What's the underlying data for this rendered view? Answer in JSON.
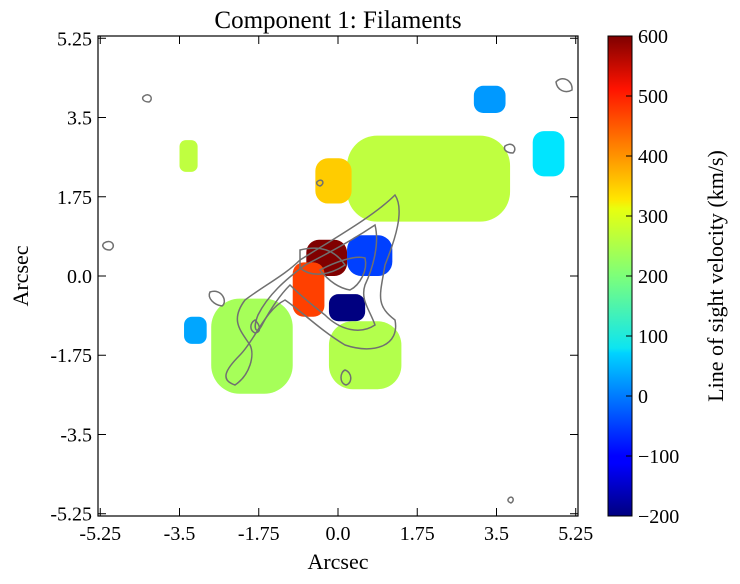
{
  "chart_data": {
    "type": "heatmap",
    "title": "Component 1: Filaments",
    "xlabel": "Arcsec",
    "ylabel": "Arcsec",
    "xlim": [
      -5.3,
      5.3
    ],
    "ylim": [
      -5.3,
      5.3
    ],
    "x_ticks": [
      -5.25,
      -3.5,
      -1.75,
      0.0,
      1.75,
      3.5,
      5.25
    ],
    "y_ticks": [
      -5.25,
      -3.5,
      -1.75,
      0.0,
      1.75,
      3.5,
      5.25
    ],
    "x_tick_labels": [
      "-5.25",
      "-3.5",
      "-1.75",
      "0.0",
      "1.75",
      "3.5",
      "5.25"
    ],
    "y_tick_labels": [
      "-5.25",
      "-3.5",
      "-1.75",
      "0.0",
      "1.75",
      "3.5",
      "5.25"
    ],
    "grid": false,
    "colorbar": {
      "label": "Line of sight velocity (km/s)",
      "colormap": "jet",
      "range": [
        -200,
        600
      ],
      "ticks": [
        -200,
        -100,
        0,
        100,
        200,
        300,
        400,
        500,
        600
      ],
      "tick_labels": [
        "−200",
        "−100",
        "0",
        "100",
        "200",
        "300",
        "400",
        "500",
        "600"
      ]
    },
    "contours": {
      "color": "#707070"
    },
    "regions": [
      {
        "x0": -0.2,
        "x1": 0.6,
        "y0": -1.0,
        "y1": -0.4,
        "velocity": -200
      },
      {
        "x0": 0.2,
        "x1": 1.2,
        "y0": 0.0,
        "y1": 0.9,
        "velocity": -50
      },
      {
        "x0": -0.7,
        "x1": 0.2,
        "y0": 0.0,
        "y1": 0.8,
        "velocity": 600
      },
      {
        "x0": -1.0,
        "x1": -0.3,
        "y0": -0.9,
        "y1": 0.3,
        "velocity": 450
      },
      {
        "x0": -2.8,
        "x1": -1.0,
        "y0": -2.6,
        "y1": -0.5,
        "velocity": 230
      },
      {
        "x0": 0.2,
        "x1": 3.8,
        "y0": 1.2,
        "y1": 3.1,
        "velocity": 250
      },
      {
        "x0": -0.2,
        "x1": 1.4,
        "y0": -2.5,
        "y1": -1.0,
        "velocity": 240
      },
      {
        "x0": 4.3,
        "x1": 5.0,
        "y0": 2.2,
        "y1": 3.2,
        "velocity": 80
      },
      {
        "x0": 3.0,
        "x1": 3.7,
        "y0": 3.6,
        "y1": 4.2,
        "velocity": 20
      },
      {
        "x0": -3.5,
        "x1": -3.1,
        "y0": 2.3,
        "y1": 3.0,
        "velocity": 250
      },
      {
        "x0": -3.4,
        "x1": -2.9,
        "y0": -1.5,
        "y1": -0.9,
        "velocity": 30
      },
      {
        "x0": -0.5,
        "x1": 0.3,
        "y0": 1.6,
        "y1": 2.6,
        "velocity": 340
      }
    ]
  }
}
